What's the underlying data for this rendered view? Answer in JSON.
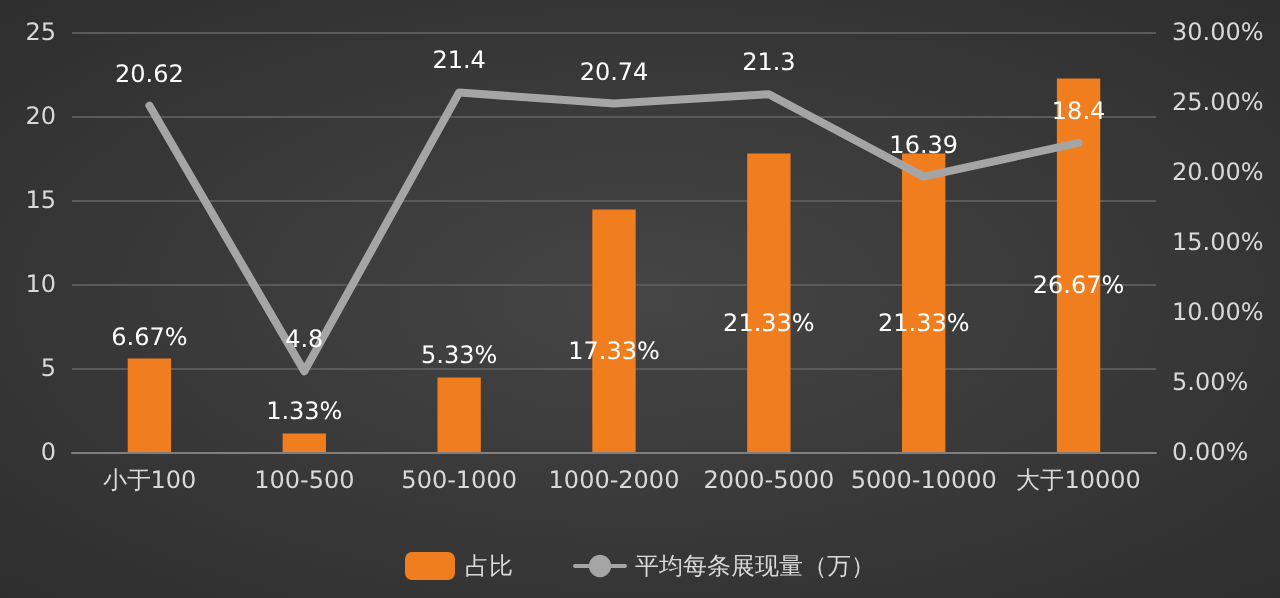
{
  "chart_data": {
    "type": "bar",
    "categories": [
      "小于100",
      "100-500",
      "500-1000",
      "1000-2000",
      "2000-5000",
      "5000-10000",
      "大于10000"
    ],
    "series": [
      {
        "name": "占比",
        "axis": "y2",
        "color": "#f07d1e",
        "values": [
          6.67,
          1.33,
          5.33,
          17.33,
          21.33,
          21.33,
          26.67
        ],
        "value_labels": [
          "6.67%",
          "1.33%",
          "5.33%",
          "17.33%",
          "21.33%",
          "21.33%",
          "26.67%"
        ]
      },
      {
        "name": "平均每条展现量（万）",
        "type": "line",
        "color": "#a5a5a5",
        "values": [
          20.62,
          4.8,
          21.4,
          20.74,
          21.3,
          16.39,
          18.4
        ],
        "value_labels": [
          "20.62",
          "4.8",
          "21.4",
          "20.74",
          "21.3",
          "16.39",
          "18.4"
        ]
      }
    ],
    "ylim": [
      0,
      25
    ],
    "yticks": [
      0,
      5,
      10,
      15,
      20,
      25
    ],
    "y2lim": [
      0,
      30
    ],
    "y2ticks": [
      {
        "value": 0,
        "label": "0.00%"
      },
      {
        "value": 5,
        "label": "5.00%"
      },
      {
        "value": 10,
        "label": "10.00%"
      },
      {
        "value": 15,
        "label": "15.00%"
      },
      {
        "value": 20,
        "label": "20.00%"
      },
      {
        "value": 25,
        "label": "25.00%"
      },
      {
        "value": 30,
        "label": "30.00%"
      }
    ],
    "grid": "y",
    "legend": "bottom",
    "marker": "none",
    "line_style": "solid"
  }
}
